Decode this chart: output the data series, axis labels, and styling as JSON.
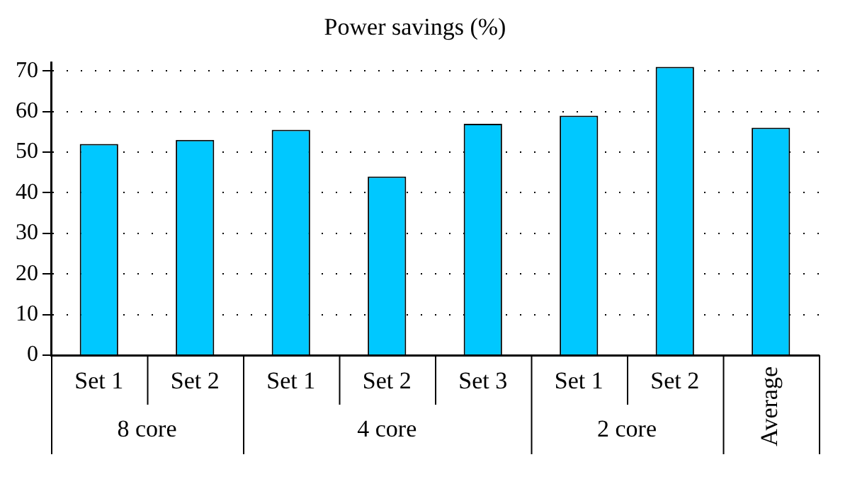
{
  "chart_data": {
    "type": "bar",
    "title": "Power savings (%)",
    "categories": [
      "Set 1",
      "Set 2",
      "Set 1",
      "Set 2",
      "Set 3",
      "Set 1",
      "Set 2",
      "Average"
    ],
    "values": [
      52,
      53,
      55.5,
      44,
      57,
      59,
      71,
      56
    ],
    "color": "#00c8ff",
    "ylim": [
      0,
      72
    ],
    "yticks": [
      0,
      10,
      20,
      30,
      40,
      50,
      60,
      70
    ],
    "grid": "y",
    "annotations": [
      "8 core",
      "4 core",
      "2 core"
    ]
  }
}
